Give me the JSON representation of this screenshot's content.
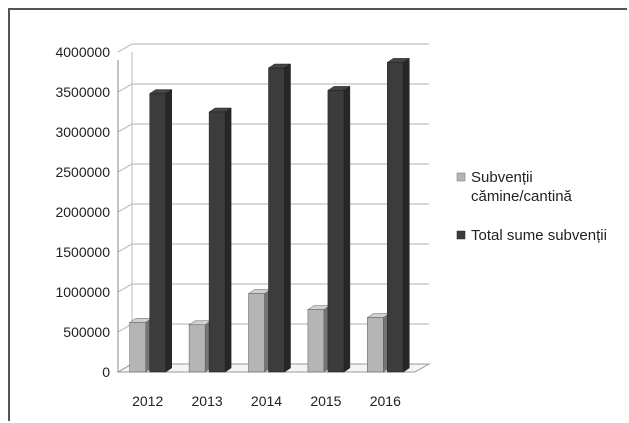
{
  "chart_data": {
    "type": "bar",
    "title": "",
    "xlabel": "",
    "ylabel": "",
    "categories": [
      "2012",
      "2013",
      "2014",
      "2015",
      "2016"
    ],
    "series": [
      {
        "name": "Subvenții cămine/cantină",
        "values": [
          620000,
          590000,
          980000,
          780000,
          680000
        ],
        "color": "#b5b5b5"
      },
      {
        "name": "Total sume subvenții",
        "values": [
          3480000,
          3250000,
          3800000,
          3520000,
          3870000
        ],
        "color": "#3c3c3c"
      }
    ],
    "ylim": [
      0,
      4000000
    ],
    "yticks": [
      "0",
      "500000",
      "1000000",
      "1500000",
      "2000000",
      "2500000",
      "3000000",
      "3500000",
      "4000000"
    ],
    "grid": true,
    "legend_position": "right",
    "legend_lines": [
      [
        "Subvenții",
        "cămine/cantină"
      ],
      [
        "Total sume subvenții"
      ]
    ]
  }
}
